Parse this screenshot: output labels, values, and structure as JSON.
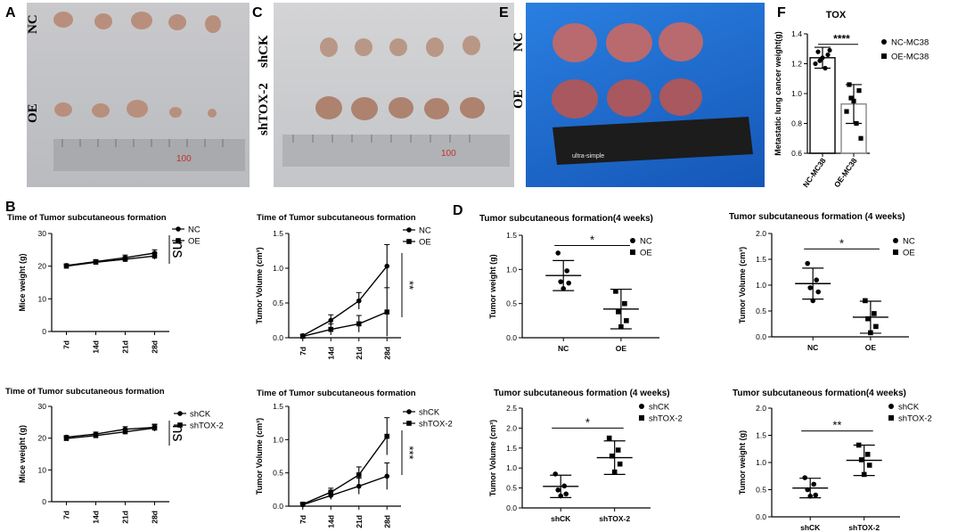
{
  "panel_labels": {
    "a": "A",
    "b": "B",
    "c": "C",
    "d": "D",
    "e": "E",
    "f": "F"
  },
  "photos": {
    "a": {
      "row1": "NC",
      "row2": "OE",
      "ruler_mark": "100"
    },
    "c": {
      "row1": "shCK",
      "row2": "shTOX-2",
      "ruler_mark": "100"
    },
    "e": {
      "row1": "NC",
      "row2": "OE",
      "brand": "ultra-simple"
    }
  },
  "colors": {
    "line": "#000000",
    "ruler": "#9a9a9a",
    "ruler_red": "#c0302a",
    "blue_bg": "#1e6ed0"
  },
  "chart_data": [
    {
      "id": "F",
      "type": "bar",
      "title": "TOX",
      "categories": [
        "NC-MC38",
        "OE-MC38"
      ],
      "values": [
        1.24,
        0.93
      ],
      "sd": [
        0.07,
        0.13
      ],
      "points": [
        [
          1.28,
          1.26,
          1.24,
          1.2,
          1.17,
          1.29,
          1.22
        ],
        [
          1.06,
          1.02,
          0.95,
          0.88,
          0.8,
          0.7,
          0.97
        ]
      ],
      "ylabel": "Metastatic lung cancer weight(g)",
      "ylim": [
        0.6,
        1.4
      ],
      "yticks": [
        "0.6",
        "0.8",
        "1.0",
        "1.2",
        "1.4"
      ],
      "significance": "****",
      "legend": [
        "NC-MC38",
        "OE-MC38"
      ]
    },
    {
      "id": "B1",
      "type": "line",
      "title": "Time of Tumor subcutaneous formation",
      "x": [
        "7d",
        "14d",
        "21d",
        "28d"
      ],
      "series": [
        {
          "name": "NC",
          "values": [
            20.2,
            21.4,
            22.6,
            24.0
          ],
          "err": [
            0.5,
            0.6,
            0.8,
            1.0
          ]
        },
        {
          "name": "OE",
          "values": [
            20.0,
            21.2,
            22.1,
            23.1
          ],
          "err": [
            0.5,
            0.6,
            0.8,
            1.0
          ]
        }
      ],
      "ylabel": "Mice weight (g)",
      "ylim": [
        0,
        30
      ],
      "yticks": [
        "0",
        "10",
        "20",
        "30"
      ],
      "significance": "ns"
    },
    {
      "id": "B2",
      "type": "line",
      "title": "Time of Tumor subcutaneous formation",
      "x": [
        "7d",
        "14d",
        "21d",
        "28d"
      ],
      "series": [
        {
          "name": "NC",
          "values": [
            0.03,
            0.25,
            0.53,
            1.03
          ],
          "err": [
            0.02,
            0.08,
            0.12,
            0.31
          ]
        },
        {
          "name": "OE",
          "values": [
            0.02,
            0.12,
            0.2,
            0.37
          ],
          "err": [
            0.02,
            0.08,
            0.12,
            0.35
          ]
        }
      ],
      "ylabel": "Tumor Volume (cm³)",
      "ylim": [
        0,
        1.5
      ],
      "yticks": [
        "0.0",
        "0.5",
        "1.0",
        "1.5"
      ],
      "significance": "**"
    },
    {
      "id": "B3",
      "type": "line",
      "title": "Time of Tumor subcutaneous formation",
      "x": [
        "7d",
        "14d",
        "21d",
        "28d"
      ],
      "series": [
        {
          "name": "shCK",
          "values": [
            20.3,
            21.3,
            22.8,
            23.4
          ],
          "err": [
            0.5,
            0.6,
            0.8,
            1.0
          ]
        },
        {
          "name": "shTOX-2",
          "values": [
            19.9,
            20.8,
            22.0,
            23.2
          ],
          "err": [
            0.5,
            0.6,
            0.8,
            1.0
          ]
        }
      ],
      "ylabel": "Mice weight (g)",
      "ylim": [
        0,
        30
      ],
      "yticks": [
        "0",
        "10",
        "20",
        "30"
      ],
      "significance": "ns"
    },
    {
      "id": "B4",
      "type": "line",
      "title": "Time of Tumor subcutaneous formation",
      "x": [
        "7d",
        "14d",
        "21d",
        "28d"
      ],
      "series": [
        {
          "name": "shCK",
          "values": [
            0.02,
            0.16,
            0.3,
            0.45
          ],
          "err": [
            0.02,
            0.06,
            0.12,
            0.2
          ]
        },
        {
          "name": "shTOX-2",
          "values": [
            0.03,
            0.21,
            0.47,
            1.05
          ],
          "err": [
            0.02,
            0.06,
            0.12,
            0.28
          ]
        }
      ],
      "ylabel": "Tumor Volume (cm³)",
      "ylim": [
        0,
        1.5
      ],
      "yticks": [
        "0.0",
        "0.5",
        "1.0",
        "1.5"
      ],
      "significance": "***"
    },
    {
      "id": "D1",
      "type": "scatter",
      "title": "Tumor subcutaneous formation(4 weeks)",
      "categories": [
        "NC",
        "OE"
      ],
      "means": [
        0.91,
        0.42
      ],
      "sd": [
        0.22,
        0.29
      ],
      "points": [
        [
          1.24,
          0.98,
          0.82,
          0.8,
          0.72
        ],
        [
          0.68,
          0.5,
          0.38,
          0.25,
          0.16
        ]
      ],
      "ylabel": "Tumor weight (g)",
      "ylim": [
        0,
        1.5
      ],
      "yticks": [
        "0.0",
        "0.5",
        "1.0",
        "1.5"
      ],
      "significance": "*",
      "legend": [
        "NC",
        "OE"
      ]
    },
    {
      "id": "D2",
      "type": "scatter",
      "title": "Tumor subcutaneous formation (4 weeks)",
      "categories": [
        "NC",
        "OE"
      ],
      "means": [
        1.03,
        0.38
      ],
      "sd": [
        0.3,
        0.31
      ],
      "points": [
        [
          1.42,
          1.1,
          0.95,
          0.87,
          0.7
        ],
        [
          0.7,
          0.45,
          0.35,
          0.2,
          0.08
        ]
      ],
      "ylabel": "Tumor Volume (cm³)",
      "ylim": [
        0,
        2.0
      ],
      "yticks": [
        "0.0",
        "0.5",
        "1.0",
        "1.5",
        "2.0"
      ],
      "significance": "*",
      "legend": [
        "NC",
        "OE"
      ]
    },
    {
      "id": "D3",
      "type": "scatter",
      "title": "Tumor subcutaneous formation (4 weeks)",
      "categories": [
        "shCK",
        "shTOX-2"
      ],
      "means": [
        0.54,
        1.26
      ],
      "sd": [
        0.28,
        0.42
      ],
      "points": [
        [
          0.85,
          0.55,
          0.45,
          0.35,
          0.3
        ],
        [
          1.75,
          1.45,
          1.3,
          1.1,
          0.9
        ]
      ],
      "ylabel": "Tumor Volume (cm³)",
      "ylim": [
        0,
        2.5
      ],
      "yticks": [
        "0.0",
        "0.5",
        "1.0",
        "1.5",
        "2.0",
        "2.5"
      ],
      "significance": "*",
      "legend": [
        "shCK",
        "shTOX-2"
      ]
    },
    {
      "id": "D4",
      "type": "scatter",
      "title": "Tumor subcutaneous formation(4 weeks)",
      "categories": [
        "shCK",
        "shTOX-2"
      ],
      "means": [
        0.53,
        1.04
      ],
      "sd": [
        0.18,
        0.28
      ],
      "points": [
        [
          0.72,
          0.6,
          0.5,
          0.4,
          0.38
        ],
        [
          1.32,
          1.15,
          1.05,
          0.95,
          0.78
        ]
      ],
      "ylabel": "Tumor weight (g)",
      "ylim": [
        0,
        2.0
      ],
      "yticks": [
        "0.0",
        "0.5",
        "1.0",
        "1.5",
        "2.0"
      ],
      "significance": "**",
      "legend": [
        "shCK",
        "shTOX-2"
      ]
    }
  ]
}
